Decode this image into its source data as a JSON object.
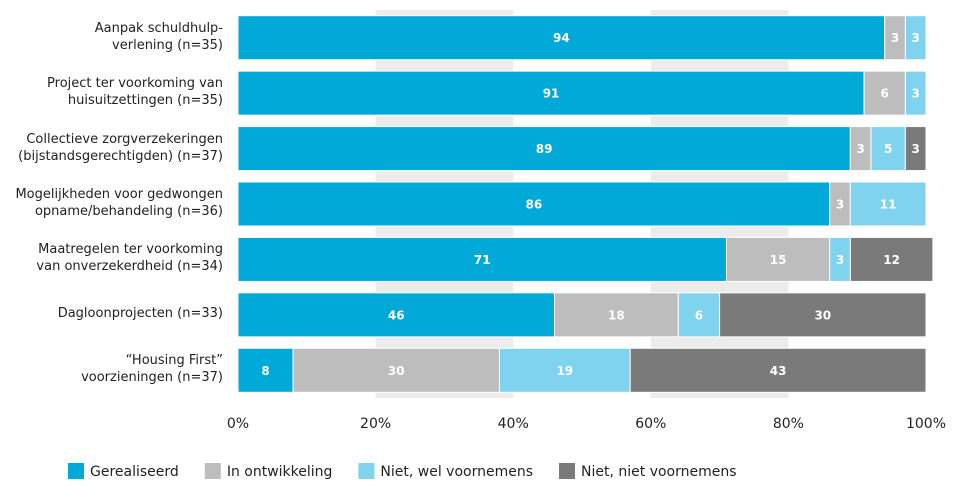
{
  "chart_data": {
    "type": "stacked-bar-horizontal",
    "categories": [
      "Aanpak schuldhulp-\nverlening (n=35)",
      "Project ter voorkoming van\nhuisuitzettingen (n=35)",
      "Collectieve zorgverzekeringen\n(bijstandsgerechtigden) (n=37)",
      "Mogelijkheden voor gedwongen\nopname/behandeling (n=36)",
      "Maatregelen ter voorkoming\nvan onverzekerdheid (n=34)",
      "Dagloonprojecten (n=33)",
      "“Housing First”\nvoorzieningen (n=37)"
    ],
    "series": [
      {
        "name": "Gerealiseerd",
        "color": "#00a9d8",
        "values": [
          94,
          91,
          89,
          86,
          71,
          46,
          8
        ]
      },
      {
        "name": "In ontwikkeling",
        "color": "#bdbdbd",
        "values": [
          3,
          6,
          3,
          3,
          15,
          18,
          30
        ]
      },
      {
        "name": "Niet, wel voornemens",
        "color": "#7fd3ee",
        "values": [
          3,
          3,
          5,
          11,
          3,
          6,
          19
        ]
      },
      {
        "name": "Niet, niet voornemens",
        "color": "#7a7a7a",
        "values": [
          null,
          null,
          3,
          null,
          12,
          30,
          43
        ]
      }
    ],
    "xlim": [
      0,
      100
    ],
    "xticks": [
      {
        "value": 0,
        "label": "0%"
      },
      {
        "value": 20,
        "label": "20%"
      },
      {
        "value": 40,
        "label": "40%"
      },
      {
        "value": 60,
        "label": "60%"
      },
      {
        "value": 80,
        "label": "80%"
      },
      {
        "value": 100,
        "label": "100%"
      }
    ],
    "legend": "bottom"
  }
}
